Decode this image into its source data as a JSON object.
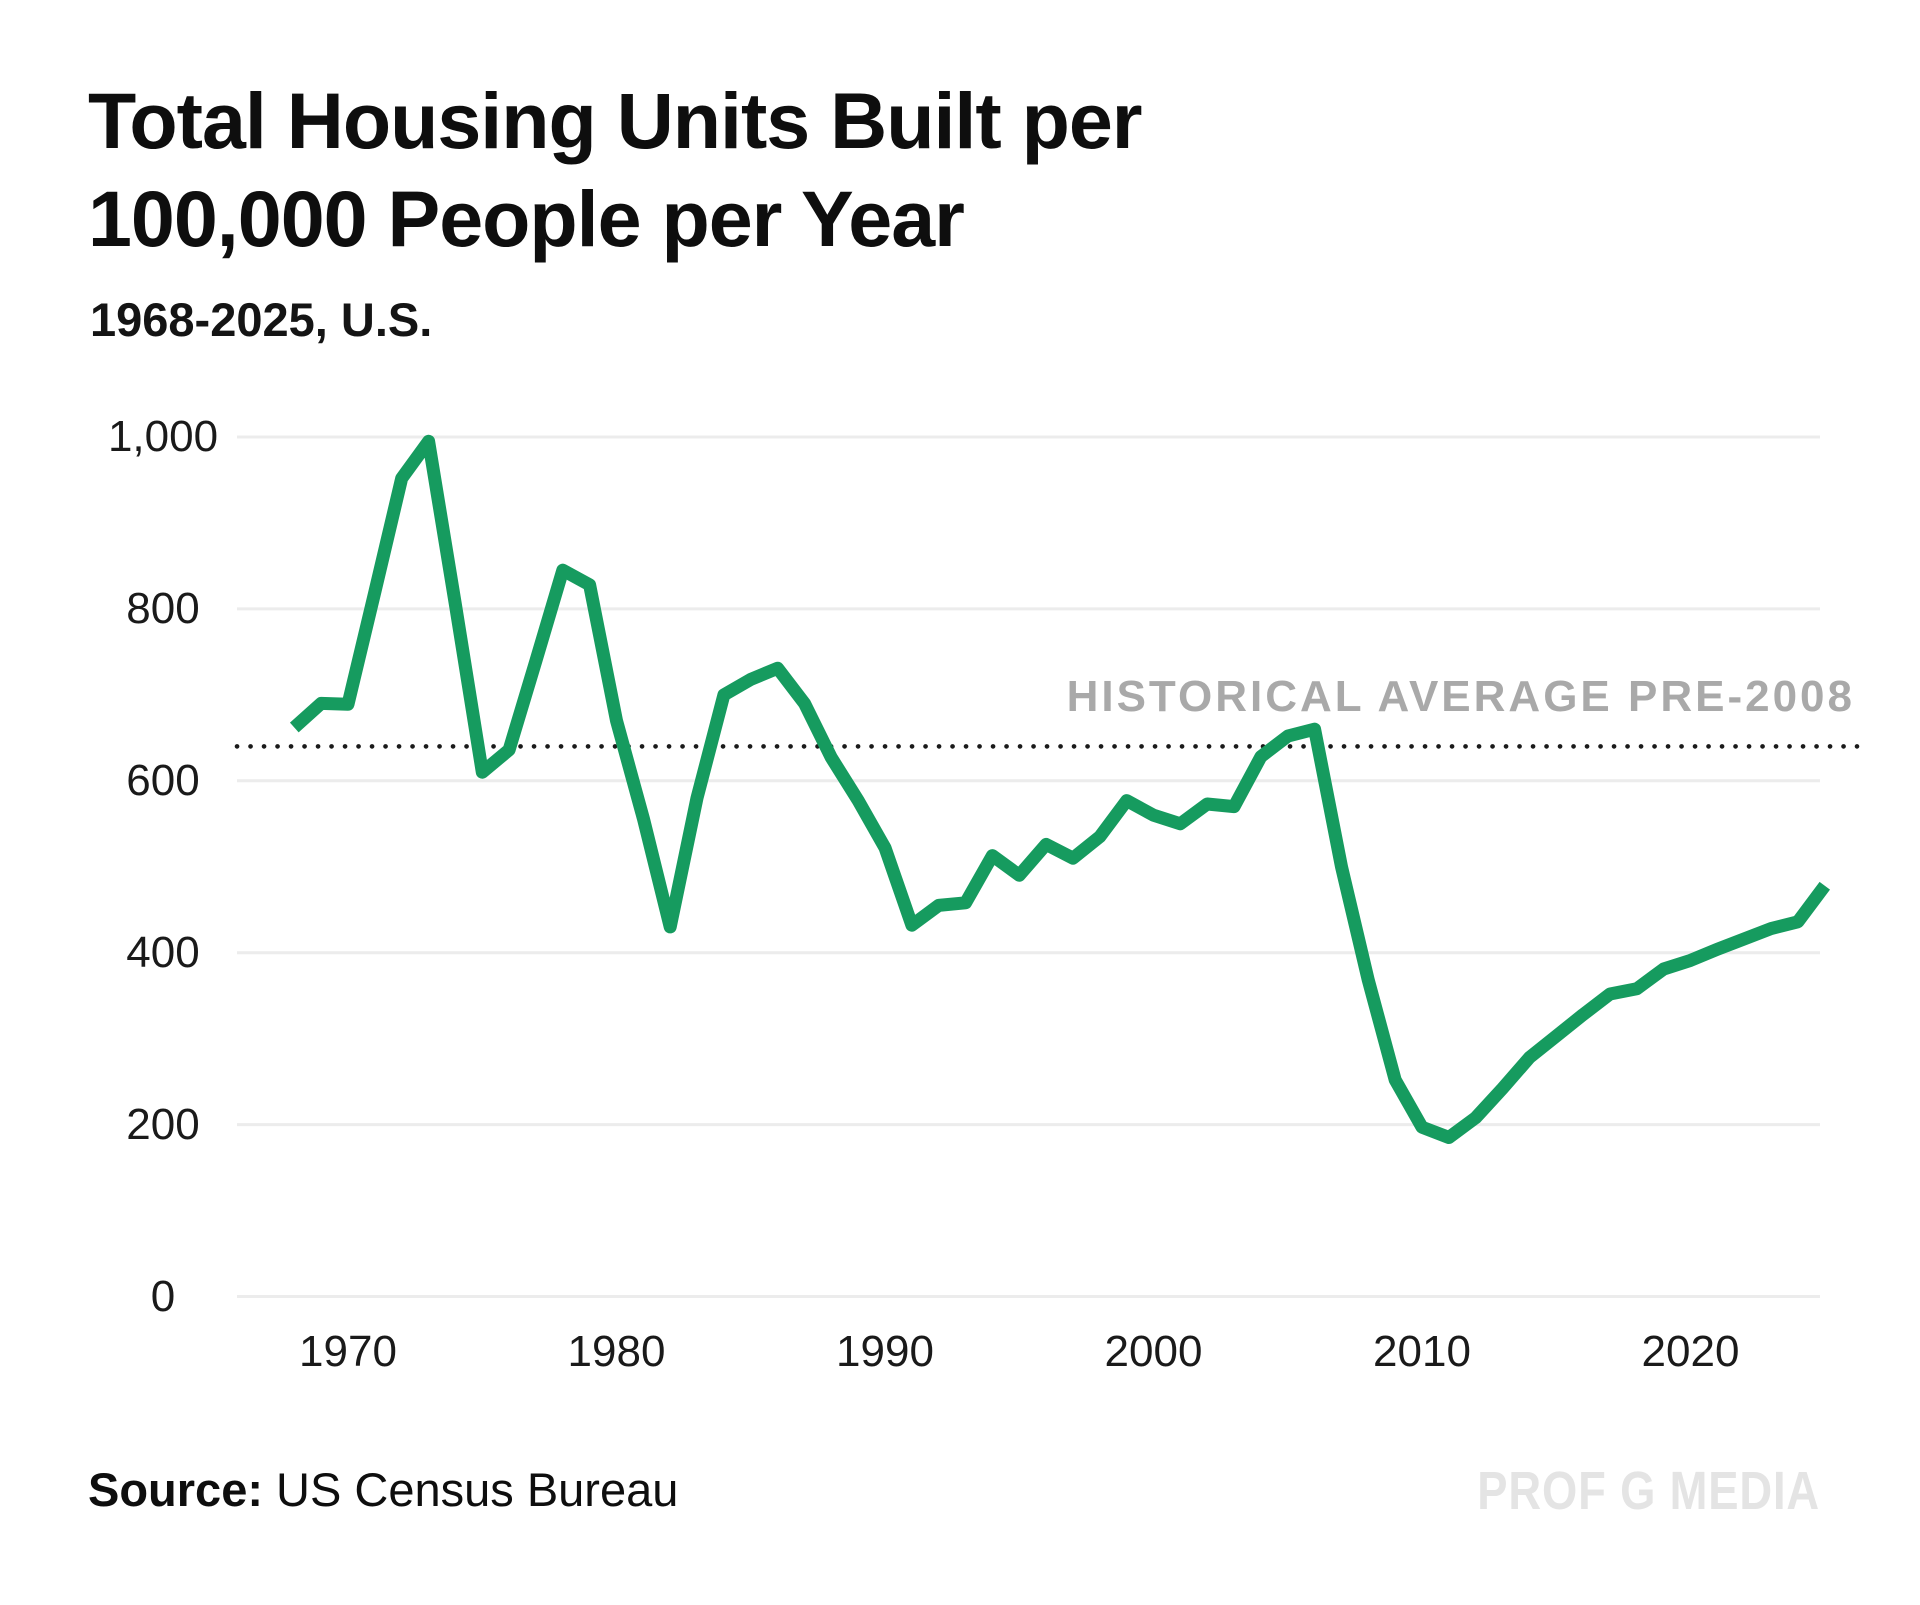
{
  "header": {
    "title_line1": "Total Housing Units Built per",
    "title_line2": "100,000 People per Year",
    "subtitle": "1968-2025, U.S."
  },
  "annotation": {
    "label": "HISTORICAL AVERAGE PRE-2008",
    "color": "#a9a9a9"
  },
  "footer": {
    "source_label": "Source:",
    "source_text": " US Census Bureau",
    "watermark": "PROF G MEDIA"
  },
  "colors": {
    "line": "#169b5f",
    "gridline": "#ececec",
    "average_dotted": "#1a1a1a",
    "text": "#1a1a1a"
  },
  "chart_data": {
    "type": "line",
    "title": "Total Housing Units Built per 100,000 People per Year",
    "subtitle": "1968-2025, U.S.",
    "xlabel": "",
    "ylabel": "",
    "x_range": [
      1968,
      2025
    ],
    "ylim": [
      0,
      1000
    ],
    "grid": "horizontal",
    "x": [
      1968,
      1969,
      1970,
      1971,
      1972,
      1973,
      1974,
      1975,
      1976,
      1977,
      1978,
      1979,
      1980,
      1981,
      1982,
      1983,
      1984,
      1985,
      1986,
      1987,
      1988,
      1989,
      1990,
      1991,
      1992,
      1993,
      1994,
      1995,
      1996,
      1997,
      1998,
      1999,
      2000,
      2001,
      2002,
      2003,
      2004,
      2005,
      2006,
      2007,
      2008,
      2009,
      2010,
      2011,
      2012,
      2013,
      2014,
      2015,
      2016,
      2017,
      2018,
      2019,
      2020,
      2021,
      2022,
      2023,
      2024,
      2025
    ],
    "values": [
      662,
      690,
      689,
      820,
      952,
      995,
      805,
      610,
      636,
      740,
      845,
      828,
      670,
      556,
      430,
      580,
      700,
      718,
      731,
      690,
      627,
      577,
      522,
      432,
      455,
      458,
      513,
      490,
      526,
      510,
      535,
      577,
      560,
      550,
      573,
      570,
      628,
      652,
      660,
      500,
      368,
      252,
      197,
      185,
      208,
      242,
      278,
      303,
      328,
      352,
      358,
      381,
      391,
      404,
      416,
      428,
      436,
      478
    ],
    "yticks": [
      0,
      200,
      400,
      600,
      800,
      1000
    ],
    "ytick_labels": [
      "0",
      "200",
      "400",
      "600",
      "800",
      "1,000"
    ],
    "xticks": [
      1970,
      1980,
      1990,
      2000,
      2010,
      2020
    ],
    "xtick_labels": [
      "1970",
      "1980",
      "1990",
      "2000",
      "2010",
      "2020"
    ],
    "average_line": {
      "label": "HISTORICAL AVERAGE PRE-2008",
      "value": 640,
      "style": "dotted"
    }
  }
}
